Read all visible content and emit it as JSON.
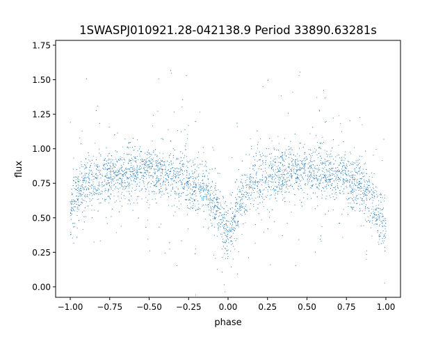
{
  "chart_data": {
    "type": "scatter",
    "title": "1SWASPJ010921.28-042138.9 Period 33890.63281s",
    "xlabel": "phase",
    "ylabel": "flux",
    "xlim": [
      -1.0925,
      1.0925
    ],
    "ylim": [
      -0.076,
      1.785
    ],
    "xticks": [
      "−1.00",
      "−0.75",
      "−0.50",
      "−0.25",
      "0.00",
      "0.25",
      "0.50",
      "0.75",
      "1.00"
    ],
    "xtick_values": [
      -1,
      -0.75,
      -0.5,
      -0.25,
      0,
      0.25,
      0.5,
      0.75,
      1
    ],
    "yticks": [
      "0.00",
      "0.25",
      "0.50",
      "0.75",
      "1.00",
      "1.25",
      "1.50",
      "1.75"
    ],
    "ytick_values": [
      0,
      0.25,
      0.5,
      0.75,
      1.0,
      1.25,
      1.5,
      1.75
    ],
    "grid": false,
    "point_color": "#1f77b4",
    "trend": {
      "phase": [
        -1.0,
        -0.95,
        -0.9,
        -0.8,
        -0.65,
        -0.5,
        -0.35,
        -0.25,
        -0.15,
        -0.08,
        -0.03,
        0.0,
        0.03,
        0.08,
        0.15,
        0.25,
        0.35,
        0.5,
        0.65,
        0.75,
        0.82,
        0.88,
        0.93,
        0.97,
        1.0
      ],
      "flux": [
        0.55,
        0.68,
        0.76,
        0.81,
        0.83,
        0.83,
        0.8,
        0.76,
        0.7,
        0.58,
        0.45,
        0.4,
        0.46,
        0.62,
        0.74,
        0.8,
        0.83,
        0.84,
        0.82,
        0.79,
        0.75,
        0.68,
        0.58,
        0.48,
        0.44
      ]
    },
    "scatter_sd": 0.09,
    "point_count": 4500
  }
}
